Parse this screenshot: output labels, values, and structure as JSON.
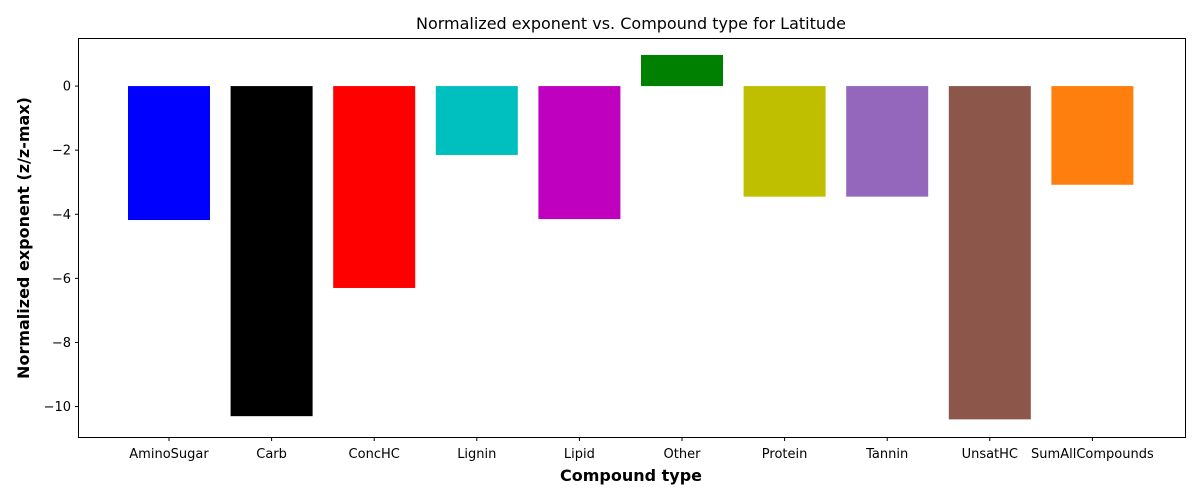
{
  "chart_data": {
    "type": "bar",
    "title": "Normalized exponent vs. Compound type for Latitude",
    "xlabel": "Compound type",
    "ylabel": "Normalized exponent (z/z-max)",
    "categories": [
      "AminoSugar",
      "Carb",
      "ConcHC",
      "Lignin",
      "Lipid",
      "Other",
      "Protein",
      "Tannin",
      "UnsatHC",
      "SumAllCompounds"
    ],
    "values": [
      -4.18,
      -10.3,
      -6.3,
      -2.15,
      -4.15,
      0.97,
      -3.45,
      -3.45,
      -10.4,
      -3.08
    ],
    "colors": [
      "#0000ff",
      "#000000",
      "#ff0000",
      "#00bfbf",
      "#bf00bf",
      "#008000",
      "#bfbf00",
      "#9467bd",
      "#8c564b",
      "#ff7f0e"
    ],
    "ylim": [
      -10.95,
      1.5
    ],
    "yticks": [
      0,
      -2,
      -4,
      -6,
      -8,
      -10
    ],
    "ytick_labels": [
      "0",
      "−2",
      "−4",
      "−6",
      "−8",
      "−10"
    ],
    "grid": false,
    "legend": false
  }
}
